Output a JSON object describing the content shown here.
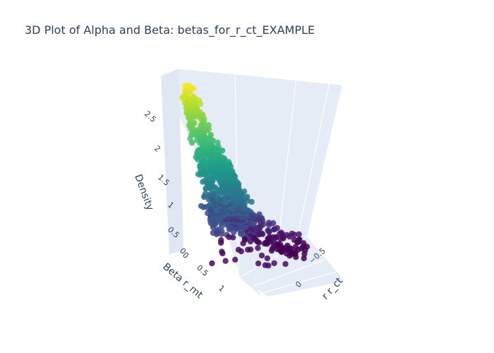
{
  "chart_data": {
    "type": "scatter",
    "title": "3D Plot of Alpha and Beta: betas_for_r_ct_EXAMPLE",
    "zlabel": "Density",
    "ylabel": "Beta r_mt",
    "xlabel": "r r_ct",
    "z_ticks": [
      "0",
      "0.5",
      "1",
      "1.5",
      "2",
      "2.5"
    ],
    "y_ticks": [
      "0",
      "0.5",
      "1"
    ],
    "x_ticks": [
      "−0.5",
      "0"
    ],
    "z_range": [
      0,
      2.8
    ],
    "colorscale": "Viridis",
    "colors": {
      "background": "#ffffff",
      "scene": "#e5ecf6",
      "grid": "#ffffff",
      "text": "#2a3f5f"
    }
  }
}
